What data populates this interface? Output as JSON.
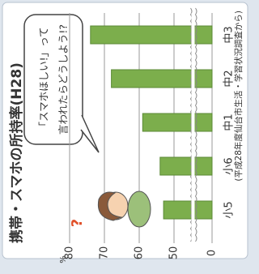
{
  "chart_data": {
    "type": "bar",
    "title": "携帯・スマホの所持率(H28)",
    "source": "(平成28年度仙台市生活・学習状況調査から)",
    "y_unit": "%",
    "categories": [
      "小5",
      "小6",
      "中1",
      "中2",
      "中3"
    ],
    "values": [
      53,
      54,
      59,
      68,
      74
    ],
    "color": "#7cae4c",
    "ylim": [
      0,
      80
    ],
    "yticks": [
      0,
      50,
      60,
      70,
      80
    ],
    "axis_break": true,
    "grid": true,
    "bubble": [
      "「スマホほしい!」って",
      "言われたらどうしよう!?"
    ],
    "exclamation": "?"
  }
}
